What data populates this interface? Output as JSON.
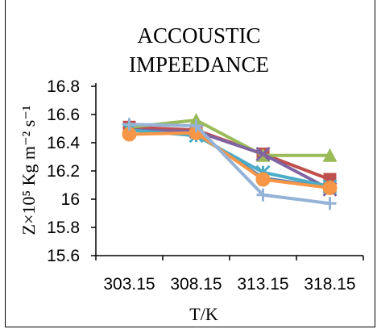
{
  "chart_data": {
    "type": "line",
    "title_lines": [
      "ACCOUSTIC",
      "IMPEEDANCE"
    ],
    "xlabel": "T/K",
    "ylabel": "Z×10⁵ Kg m⁻² s⁻¹",
    "categories": [
      "303.15",
      "308.15",
      "313.15",
      "318.15"
    ],
    "y_ticks": [
      "16.8",
      "16.6",
      "16.4",
      "16.2",
      "16",
      "15.8",
      "15.6"
    ],
    "ylim": [
      15.6,
      16.8
    ],
    "grid": false,
    "legend": "none",
    "series": [
      {
        "color": "#4f81bd",
        "marker": "diamond",
        "values": [
          16.49,
          16.47,
          16.15,
          16.08
        ]
      },
      {
        "color": "#c0504d",
        "marker": "square",
        "values": [
          16.51,
          16.49,
          16.32,
          16.14
        ]
      },
      {
        "color": "#9bbb59",
        "marker": "triangle",
        "values": [
          16.51,
          16.56,
          16.31,
          16.31
        ]
      },
      {
        "color": "#8064a2",
        "marker": "x",
        "values": [
          16.49,
          16.48,
          16.32,
          16.07
        ]
      },
      {
        "color": "#4bacc6",
        "marker": "star",
        "values": [
          16.49,
          16.45,
          16.19,
          16.09
        ]
      },
      {
        "color": "#f79646",
        "marker": "circle",
        "values": [
          16.46,
          16.47,
          16.14,
          16.08
        ]
      },
      {
        "color": "#95b3d7",
        "marker": "plus",
        "values": [
          16.53,
          16.52,
          16.03,
          15.97
        ]
      }
    ]
  }
}
